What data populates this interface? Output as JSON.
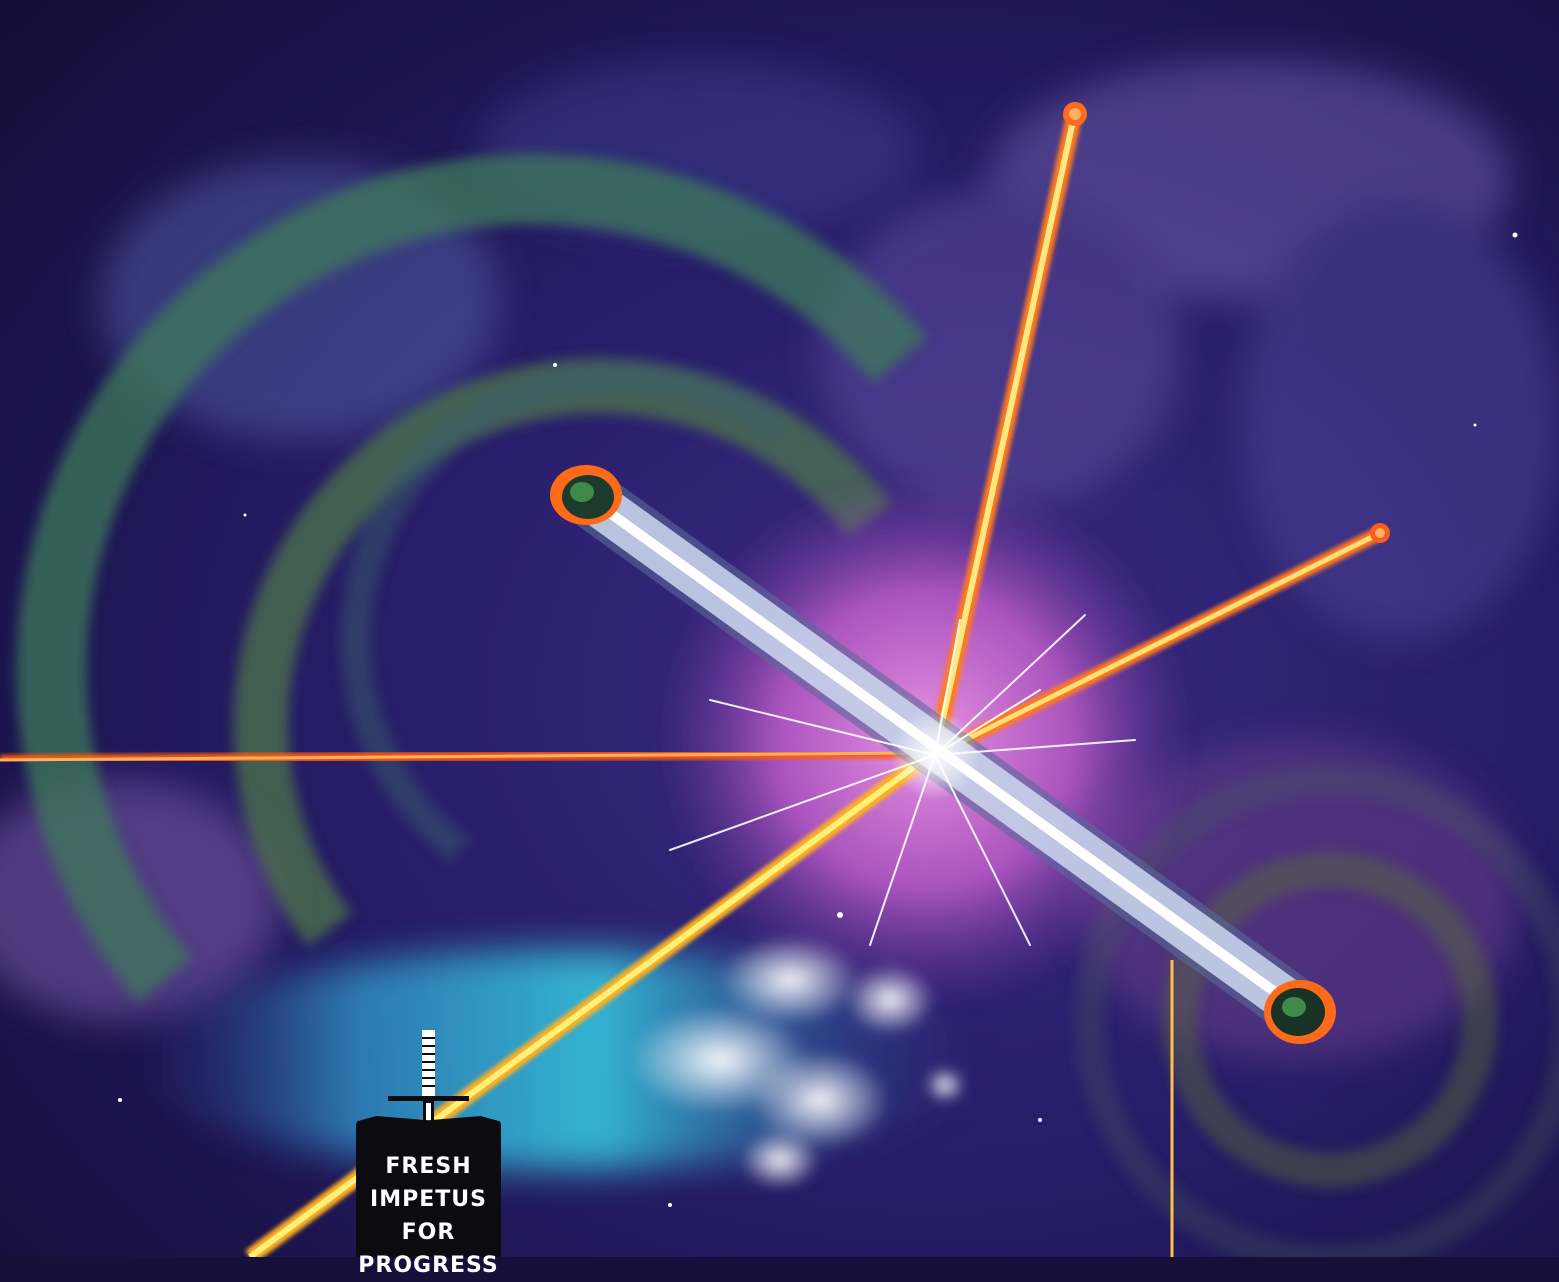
{
  "cover": {
    "emblem_lines": [
      "FRESH",
      "IMPETUS",
      "FOR",
      "PROGRESS"
    ],
    "emblem_icon": "sword-icon"
  },
  "colors": {
    "space_dark": "#160f3c",
    "space_mid": "#2c2370",
    "space_violet": "#5a3f9a",
    "glow_pink": "#d36ad6",
    "ring_green": "#3f7a5a",
    "nebula_cyan": "#29b6d8",
    "beam_orange": "#ff6a1a",
    "beam_yellow": "#ffd23a",
    "beam_white": "#e8f2ff",
    "emblem_black": "#0b0b10"
  }
}
